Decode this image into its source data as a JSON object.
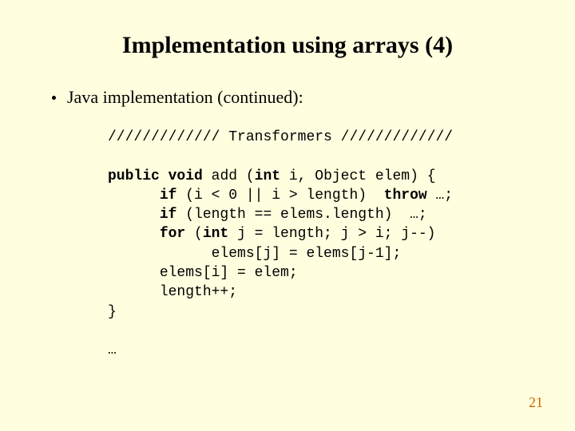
{
  "title": "Implementation using arrays (4)",
  "bullet": "Java implementation (continued):",
  "code": {
    "sep_left": "/////////////",
    "sep_label": " Transformers ",
    "sep_right": "/////////////",
    "kw_public": "public",
    "kw_void": "void",
    "fn_sig_mid": " add (",
    "kw_int1": "int",
    "fn_sig_rest": " i, Object elem) {",
    "kw_if1": "if",
    "if1_cond": " (i < 0 || i > length)  ",
    "kw_throw": "throw",
    "if1_end": " …;",
    "kw_if2": "if",
    "if2_rest": " (length == elems.length)  …;",
    "kw_for": "for",
    "for_sig_a": " (",
    "kw_int2": "int",
    "for_sig_b": " j = length; j > i; j--)",
    "for_body": "elems[j] = elems[j-1];",
    "assign": "elems[i] = elem;",
    "inc": "length++;",
    "close": "}",
    "ellipsis": "…"
  },
  "page_number": "21"
}
